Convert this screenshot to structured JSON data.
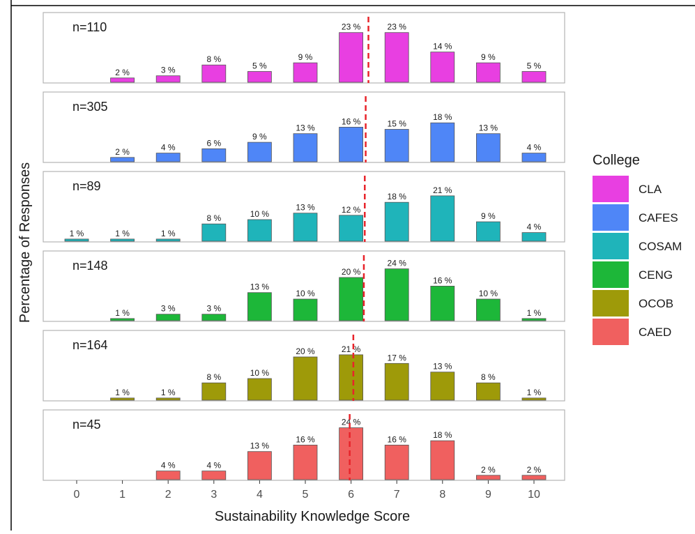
{
  "chart_data": {
    "type": "bar",
    "xlabel": "Sustainability Knowledge Score",
    "ylabel": "Percentage of Responses",
    "categories": [
      "0",
      "1",
      "2",
      "3",
      "4",
      "5",
      "6",
      "7",
      "8",
      "9",
      "10"
    ],
    "legend": {
      "title": "College",
      "placement": "right",
      "entries": [
        {
          "name": "CLA",
          "color": "#E83FE1"
        },
        {
          "name": "CAFES",
          "color": "#4F86F7"
        },
        {
          "name": "COSAM",
          "color": "#1FB4BA"
        },
        {
          "name": "CENG",
          "color": "#1DB739"
        },
        {
          "name": "OCOB",
          "color": "#9E9A09"
        },
        {
          "name": "CAED",
          "color": "#F0605F"
        }
      ]
    },
    "grid": false,
    "series": [
      {
        "name": "CLA",
        "n_label": "n=110",
        "color": "#E83FE1",
        "values": [
          null,
          2,
          3,
          8,
          5,
          9,
          23,
          23,
          14,
          9,
          5
        ],
        "labels": [
          "",
          "2 %",
          "3 %",
          "8 %",
          "5 %",
          "9 %",
          "23 %",
          "23 %",
          "14 %",
          "9 %",
          "5 %"
        ],
        "mean": 6.38
      },
      {
        "name": "CAFES",
        "n_label": "n=305",
        "color": "#4F86F7",
        "values": [
          null,
          2,
          4,
          6,
          9,
          13,
          16,
          15,
          18,
          13,
          4
        ],
        "labels": [
          "",
          "2 %",
          "4 %",
          "6 %",
          "9 %",
          "13 %",
          "16 %",
          "15 %",
          "18 %",
          "13 %",
          "4 %"
        ],
        "mean": 6.32
      },
      {
        "name": "COSAM",
        "n_label": "n=89",
        "color": "#1FB4BA",
        "values": [
          1,
          1,
          1,
          8,
          10,
          13,
          12,
          18,
          21,
          9,
          4
        ],
        "labels": [
          "1 %",
          "1 %",
          "1 %",
          "8 %",
          "10 %",
          "13 %",
          "12 %",
          "18 %",
          "21 %",
          "9 %",
          "4 %"
        ],
        "mean": 6.3
      },
      {
        "name": "CENG",
        "n_label": "n=148",
        "color": "#1DB739",
        "values": [
          null,
          1,
          3,
          3,
          13,
          10,
          20,
          24,
          16,
          10,
          1
        ],
        "labels": [
          "",
          "1 %",
          "3 %",
          "3 %",
          "13 %",
          "10 %",
          "20 %",
          "24 %",
          "16 %",
          "10 %",
          "1 %"
        ],
        "mean": 6.28
      },
      {
        "name": "OCOB",
        "n_label": "n=164",
        "color": "#9E9A09",
        "values": [
          null,
          1,
          1,
          8,
          10,
          20,
          21,
          17,
          13,
          8,
          1
        ],
        "labels": [
          "",
          "1 %",
          "1 %",
          "8 %",
          "10 %",
          "20 %",
          "21 %",
          "17 %",
          "13 %",
          "8 %",
          "1 %"
        ],
        "mean": 6.05
      },
      {
        "name": "CAED",
        "n_label": "n=45",
        "color": "#F0605F",
        "values": [
          null,
          null,
          4,
          4,
          13,
          16,
          24,
          16,
          18,
          2,
          2
        ],
        "labels": [
          "",
          "",
          "4 %",
          "4 %",
          "13 %",
          "16 %",
          "24 %",
          "16 %",
          "18 %",
          "2 %",
          "2 %"
        ],
        "mean": 5.97
      }
    ],
    "mean_line_color": "#E8232A"
  }
}
